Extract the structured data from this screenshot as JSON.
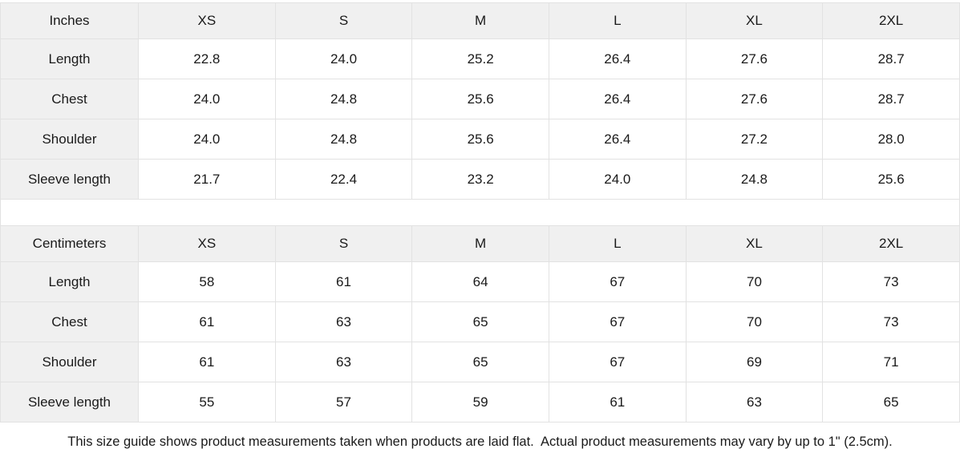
{
  "tables": [
    {
      "unit_label": "Inches",
      "sizes": [
        "XS",
        "S",
        "M",
        "L",
        "XL",
        "2XL"
      ],
      "rows": [
        {
          "label": "Length",
          "values": [
            "22.8",
            "24.0",
            "25.2",
            "26.4",
            "27.6",
            "28.7"
          ]
        },
        {
          "label": "Chest",
          "values": [
            "24.0",
            "24.8",
            "25.6",
            "26.4",
            "27.6",
            "28.7"
          ]
        },
        {
          "label": "Shoulder",
          "values": [
            "24.0",
            "24.8",
            "25.6",
            "26.4",
            "27.2",
            "28.0"
          ]
        },
        {
          "label": "Sleeve length",
          "values": [
            "21.7",
            "22.4",
            "23.2",
            "24.0",
            "24.8",
            "25.6"
          ]
        }
      ]
    },
    {
      "unit_label": "Centimeters",
      "sizes": [
        "XS",
        "S",
        "M",
        "L",
        "XL",
        "2XL"
      ],
      "rows": [
        {
          "label": "Length",
          "values": [
            "58",
            "61",
            "64",
            "67",
            "70",
            "73"
          ]
        },
        {
          "label": "Chest",
          "values": [
            "61",
            "63",
            "65",
            "67",
            "70",
            "73"
          ]
        },
        {
          "label": "Shoulder",
          "values": [
            "61",
            "63",
            "65",
            "67",
            "69",
            "71"
          ]
        },
        {
          "label": "Sleeve length",
          "values": [
            "55",
            "57",
            "59",
            "61",
            "63",
            "65"
          ]
        }
      ]
    }
  ],
  "footer_note": "This size guide shows product measurements taken when products are laid flat.  Actual product measurements may vary by up to 1\" (2.5cm).",
  "colors": {
    "header_bg": "#f0f0f0",
    "border": "#e2e2e2",
    "text": "#1a1a1a"
  }
}
